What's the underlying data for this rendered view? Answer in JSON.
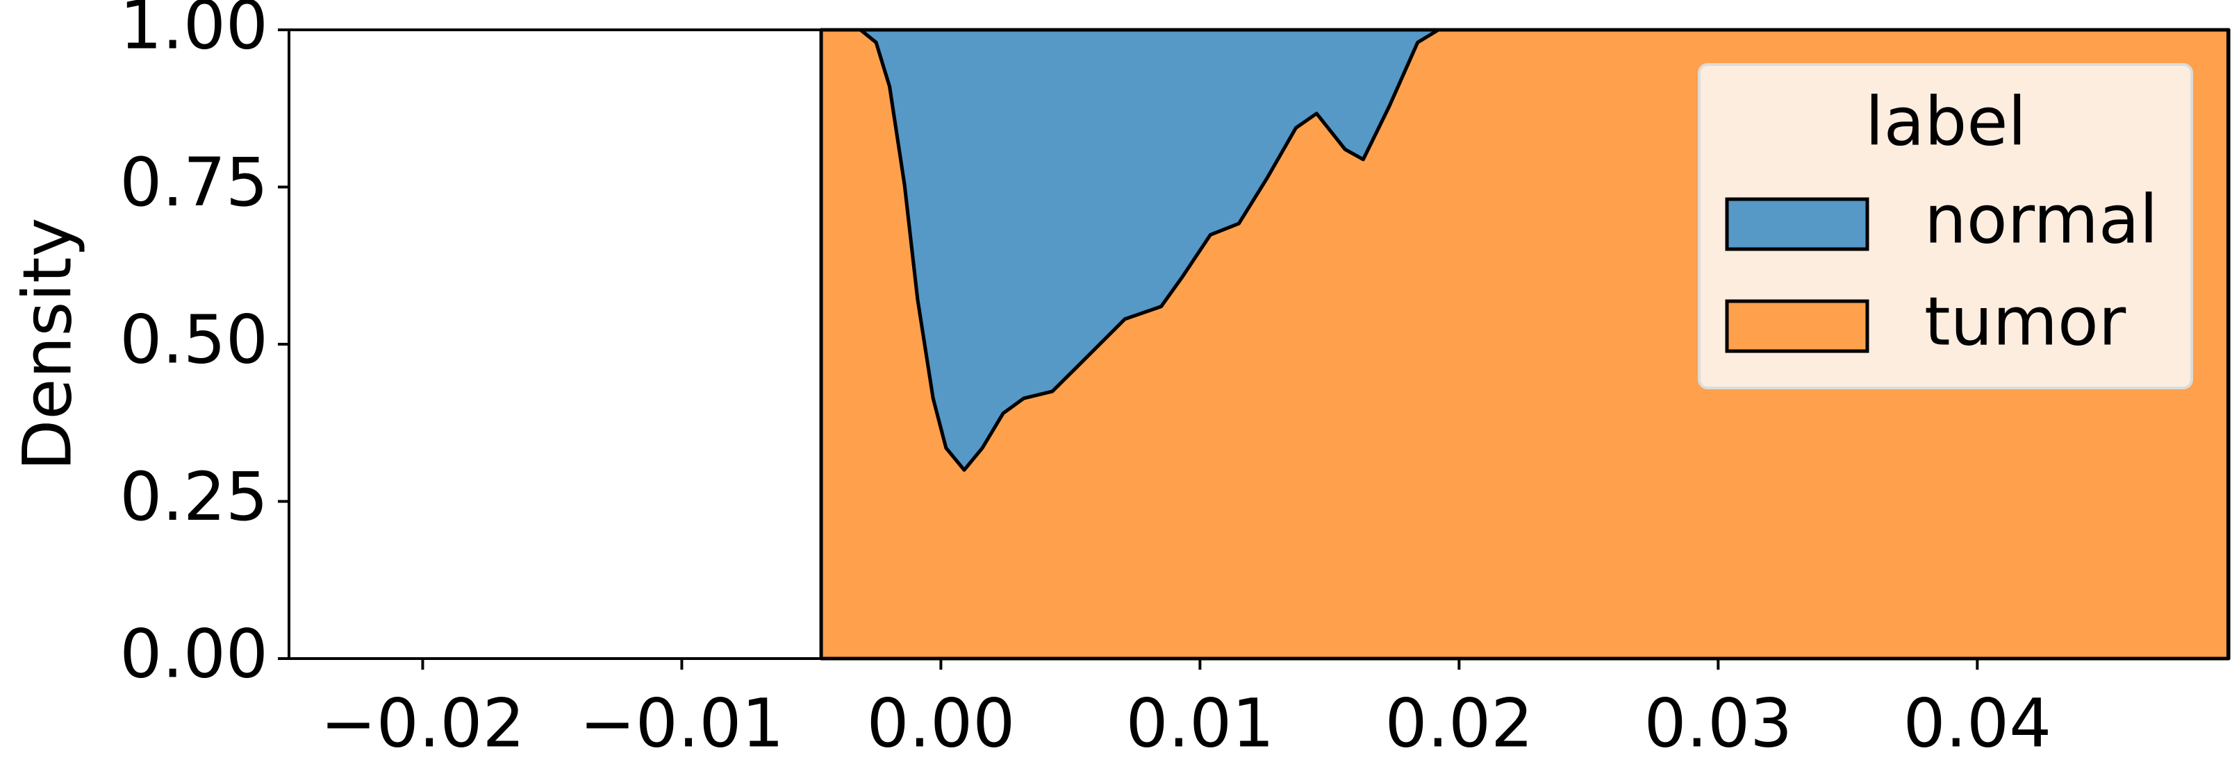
{
  "chart_data": {
    "type": "area",
    "stacked": true,
    "ylabel": "Density",
    "x": [
      -0.00462,
      -0.0031,
      -0.0025,
      -0.00198,
      -0.0014,
      -0.0009,
      -0.0003,
      0.0002,
      0.0009,
      0.0016,
      0.0024,
      0.0032,
      0.0043,
      0.0054,
      0.0071,
      0.0085,
      0.0093,
      0.0104,
      0.0115,
      0.0126,
      0.0137,
      0.0145,
      0.0156,
      0.0163,
      0.0173,
      0.0184,
      0.0192,
      0.0497
    ],
    "series": [
      {
        "name": "tumor",
        "color": "#fea04c",
        "values": [
          1.0,
          1.0,
          0.98,
          0.91,
          0.753,
          0.572,
          0.414,
          0.335,
          0.3,
          0.335,
          0.39,
          0.414,
          0.425,
          0.47,
          0.54,
          0.56,
          0.606,
          0.674,
          0.692,
          0.765,
          0.844,
          0.867,
          0.81,
          0.794,
          0.878,
          0.98,
          1.0,
          1.0
        ]
      },
      {
        "name": "normal",
        "color": "#5698c6",
        "values": [
          0.0,
          0.0,
          0.02,
          0.09,
          0.247,
          0.428,
          0.586,
          0.665,
          0.7,
          0.665,
          0.61,
          0.586,
          0.575,
          0.53,
          0.46,
          0.44,
          0.394,
          0.326,
          0.308,
          0.235,
          0.156,
          0.133,
          0.19,
          0.206,
          0.122,
          0.02,
          0.0,
          0.0
        ]
      }
    ],
    "legend_title": "label",
    "legend_order": [
      "normal",
      "tumor"
    ],
    "legend": "upper right",
    "xlim": [
      -0.02516,
      0.04967
    ],
    "ylim": [
      0,
      1
    ],
    "xticks": [
      {
        "value": -0.02,
        "label": "−0.02"
      },
      {
        "value": -0.01,
        "label": "−0.01"
      },
      {
        "value": 0,
        "label": "0.00"
      },
      {
        "value": 0.01,
        "label": "0.01"
      },
      {
        "value": 0.02,
        "label": "0.02"
      },
      {
        "value": 0.03,
        "label": "0.03"
      },
      {
        "value": 0.04,
        "label": "0.04"
      }
    ],
    "yticks": [
      {
        "value": 0,
        "label": "0.00"
      },
      {
        "value": 0.25,
        "label": "0.25"
      },
      {
        "value": 0.5,
        "label": "0.50"
      },
      {
        "value": 0.75,
        "label": "0.75"
      },
      {
        "value": 1,
        "label": "1.00"
      }
    ]
  }
}
